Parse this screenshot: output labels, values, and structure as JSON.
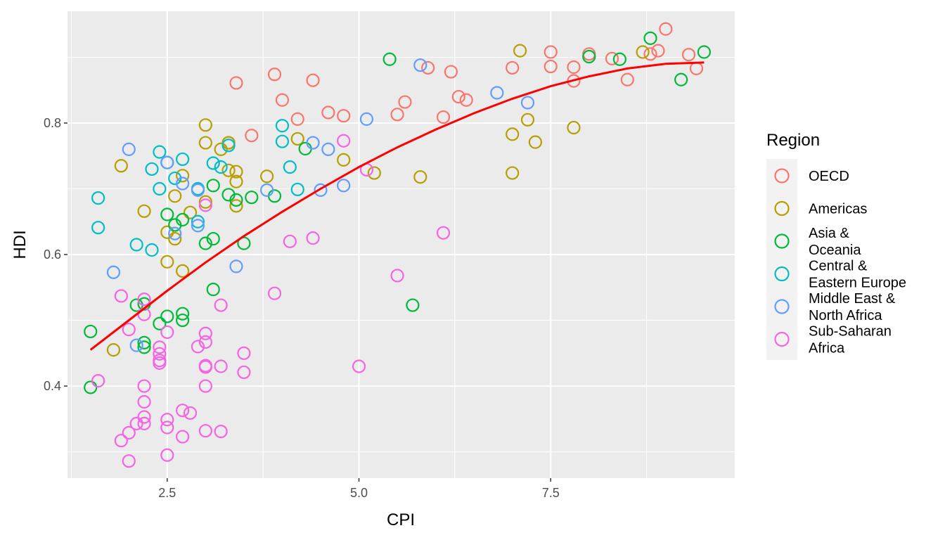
{
  "chart_data": {
    "type": "scatter",
    "title": "",
    "xlabel": "CPI",
    "ylabel": "HDI",
    "xlim": [
      1.2,
      9.9
    ],
    "ylim": [
      0.26,
      0.97
    ],
    "x_ticks": [
      2.5,
      5.0,
      7.5
    ],
    "x_tick_labels": [
      "2.5",
      "5.0",
      "7.5"
    ],
    "y_ticks": [
      0.4,
      0.6,
      0.8
    ],
    "y_tick_labels": [
      "0.4",
      "0.6",
      "0.8"
    ],
    "grid": true,
    "legend": {
      "title": "Region",
      "position": "right",
      "entries": [
        {
          "label": "OECD",
          "color": "#F8766D"
        },
        {
          "label": "Americas",
          "color": "#B79F00"
        },
        {
          "label": "Asia &\nOceania",
          "color": "#00BA38"
        },
        {
          "label": "Central &\nEastern Europe",
          "color": "#00BFC4"
        },
        {
          "label": "Middle East &\nNorth Africa",
          "color": "#619CFF"
        },
        {
          "label": "Sub-Saharan\nAfrica",
          "color": "#F564E3"
        }
      ]
    },
    "series": [
      {
        "name": "OECD",
        "color": "#F8766D",
        "points": [
          [
            3.4,
            0.861
          ],
          [
            3.3,
            0.77
          ],
          [
            3.6,
            0.781
          ],
          [
            3.9,
            0.874
          ],
          [
            4.0,
            0.835
          ],
          [
            4.2,
            0.806
          ],
          [
            4.4,
            0.865
          ],
          [
            4.6,
            0.816
          ],
          [
            4.8,
            0.811
          ],
          [
            5.5,
            0.813
          ],
          [
            5.6,
            0.832
          ],
          [
            5.9,
            0.884
          ],
          [
            6.1,
            0.809
          ],
          [
            6.2,
            0.878
          ],
          [
            6.3,
            0.84
          ],
          [
            6.4,
            0.835
          ],
          [
            7.0,
            0.884
          ],
          [
            7.5,
            0.908
          ],
          [
            7.5,
            0.886
          ],
          [
            7.8,
            0.885
          ],
          [
            7.8,
            0.864
          ],
          [
            8.0,
            0.905
          ],
          [
            8.3,
            0.898
          ],
          [
            8.5,
            0.866
          ],
          [
            8.8,
            0.905
          ],
          [
            8.9,
            0.91
          ],
          [
            9.0,
            0.943
          ],
          [
            9.3,
            0.904
          ],
          [
            9.4,
            0.883
          ]
        ]
      },
      {
        "name": "Americas",
        "color": "#B79F00",
        "points": [
          [
            1.8,
            0.455
          ],
          [
            1.9,
            0.735
          ],
          [
            2.2,
            0.666
          ],
          [
            2.5,
            0.589
          ],
          [
            2.5,
            0.634
          ],
          [
            2.6,
            0.624
          ],
          [
            2.6,
            0.689
          ],
          [
            2.7,
            0.72
          ],
          [
            2.7,
            0.575
          ],
          [
            2.8,
            0.664
          ],
          [
            3.0,
            0.797
          ],
          [
            3.0,
            0.77
          ],
          [
            3.0,
            0.68
          ],
          [
            3.2,
            0.76
          ],
          [
            3.3,
            0.728
          ],
          [
            3.3,
            0.77
          ],
          [
            3.4,
            0.674
          ],
          [
            3.4,
            0.711
          ],
          [
            3.4,
            0.726
          ],
          [
            3.8,
            0.719
          ],
          [
            4.2,
            0.776
          ],
          [
            4.8,
            0.744
          ],
          [
            5.2,
            0.724
          ],
          [
            5.8,
            0.718
          ],
          [
            7.0,
            0.783
          ],
          [
            7.0,
            0.724
          ],
          [
            7.1,
            0.91
          ],
          [
            7.2,
            0.805
          ],
          [
            7.3,
            0.771
          ],
          [
            7.8,
            0.793
          ],
          [
            8.7,
            0.908
          ]
        ]
      },
      {
        "name": "Asia & Oceania",
        "color": "#00BA38",
        "points": [
          [
            1.5,
            0.398
          ],
          [
            1.5,
            0.483
          ],
          [
            2.1,
            0.523
          ],
          [
            2.2,
            0.459
          ],
          [
            2.2,
            0.466
          ],
          [
            2.2,
            0.525
          ],
          [
            2.4,
            0.495
          ],
          [
            2.5,
            0.506
          ],
          [
            2.5,
            0.661
          ],
          [
            2.6,
            0.645
          ],
          [
            2.7,
            0.653
          ],
          [
            2.7,
            0.5
          ],
          [
            2.7,
            0.51
          ],
          [
            3.0,
            0.617
          ],
          [
            3.1,
            0.547
          ],
          [
            3.1,
            0.624
          ],
          [
            3.1,
            0.705
          ],
          [
            3.3,
            0.691
          ],
          [
            3.4,
            0.683
          ],
          [
            3.5,
            0.617
          ],
          [
            3.6,
            0.687
          ],
          [
            3.9,
            0.689
          ],
          [
            4.3,
            0.761
          ],
          [
            5.4,
            0.897
          ],
          [
            5.7,
            0.523
          ],
          [
            8.0,
            0.901
          ],
          [
            8.4,
            0.897
          ],
          [
            8.8,
            0.929
          ],
          [
            9.2,
            0.866
          ],
          [
            9.5,
            0.908
          ]
        ]
      },
      {
        "name": "Central & Eastern Europe",
        "color": "#00BFC4",
        "points": [
          [
            1.6,
            0.686
          ],
          [
            1.6,
            0.641
          ],
          [
            2.1,
            0.615
          ],
          [
            2.3,
            0.607
          ],
          [
            2.3,
            0.73
          ],
          [
            2.4,
            0.7
          ],
          [
            2.4,
            0.756
          ],
          [
            2.5,
            0.74
          ],
          [
            2.6,
            0.716
          ],
          [
            2.7,
            0.745
          ],
          [
            2.9,
            0.7
          ],
          [
            2.9,
            0.65
          ],
          [
            3.1,
            0.739
          ],
          [
            3.2,
            0.733
          ],
          [
            3.3,
            0.766
          ],
          [
            4.0,
            0.796
          ],
          [
            4.0,
            0.772
          ],
          [
            4.1,
            0.733
          ],
          [
            4.2,
            0.699
          ]
        ]
      },
      {
        "name": "Middle East & North Africa",
        "color": "#619CFF",
        "points": [
          [
            1.8,
            0.573
          ],
          [
            2.0,
            0.76
          ],
          [
            2.1,
            0.462
          ],
          [
            2.5,
            0.74
          ],
          [
            2.6,
            0.632
          ],
          [
            2.7,
            0.708
          ],
          [
            2.9,
            0.644
          ],
          [
            2.9,
            0.698
          ],
          [
            3.4,
            0.582
          ],
          [
            3.8,
            0.698
          ],
          [
            4.4,
            0.77
          ],
          [
            4.5,
            0.698
          ],
          [
            4.6,
            0.76
          ],
          [
            4.8,
            0.705
          ],
          [
            5.1,
            0.806
          ],
          [
            5.8,
            0.888
          ],
          [
            6.8,
            0.846
          ],
          [
            7.2,
            0.831
          ]
        ]
      },
      {
        "name": "Sub-Saharan Africa",
        "color": "#F564E3",
        "points": [
          [
            1.6,
            0.408
          ],
          [
            1.9,
            0.537
          ],
          [
            1.9,
            0.317
          ],
          [
            2.0,
            0.486
          ],
          [
            2.0,
            0.329
          ],
          [
            2.0,
            0.286
          ],
          [
            2.1,
            0.343
          ],
          [
            2.2,
            0.509
          ],
          [
            2.2,
            0.532
          ],
          [
            2.2,
            0.4
          ],
          [
            2.2,
            0.376
          ],
          [
            2.2,
            0.343
          ],
          [
            2.2,
            0.353
          ],
          [
            2.4,
            0.459
          ],
          [
            2.4,
            0.449
          ],
          [
            2.4,
            0.435
          ],
          [
            2.4,
            0.439
          ],
          [
            2.5,
            0.482
          ],
          [
            2.5,
            0.349
          ],
          [
            2.5,
            0.337
          ],
          [
            2.5,
            0.295
          ],
          [
            2.7,
            0.363
          ],
          [
            2.7,
            0.323
          ],
          [
            2.8,
            0.359
          ],
          [
            2.9,
            0.46
          ],
          [
            3.0,
            0.675
          ],
          [
            3.0,
            0.48
          ],
          [
            3.0,
            0.467
          ],
          [
            3.0,
            0.429
          ],
          [
            3.0,
            0.431
          ],
          [
            3.0,
            0.4
          ],
          [
            3.0,
            0.332
          ],
          [
            3.2,
            0.331
          ],
          [
            3.2,
            0.43
          ],
          [
            3.2,
            0.523
          ],
          [
            3.5,
            0.45
          ],
          [
            3.5,
            0.421
          ],
          [
            3.9,
            0.541
          ],
          [
            4.1,
            0.62
          ],
          [
            4.4,
            0.625
          ],
          [
            4.8,
            0.773
          ],
          [
            5.0,
            0.43
          ],
          [
            5.1,
            0.729
          ],
          [
            5.5,
            0.568
          ],
          [
            6.1,
            0.633
          ]
        ]
      }
    ],
    "trend_line": {
      "color": "#FF0000",
      "points": [
        [
          1.5,
          0.455
        ],
        [
          2.0,
          0.5
        ],
        [
          2.5,
          0.545
        ],
        [
          3.0,
          0.588
        ],
        [
          3.5,
          0.628
        ],
        [
          4.0,
          0.665
        ],
        [
          4.5,
          0.7
        ],
        [
          5.0,
          0.733
        ],
        [
          5.5,
          0.763
        ],
        [
          6.0,
          0.79
        ],
        [
          6.5,
          0.815
        ],
        [
          7.0,
          0.837
        ],
        [
          7.5,
          0.856
        ],
        [
          8.0,
          0.871
        ],
        [
          8.5,
          0.883
        ],
        [
          9.0,
          0.89
        ],
        [
          9.5,
          0.892
        ]
      ]
    }
  }
}
